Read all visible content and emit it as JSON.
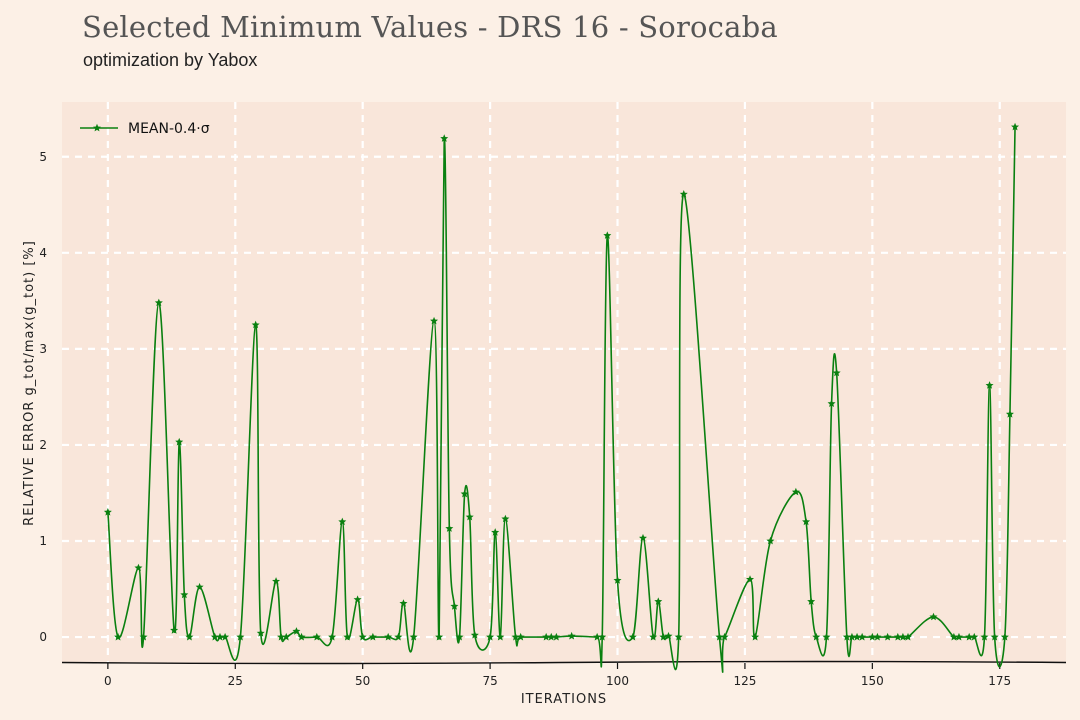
{
  "header": {
    "title": "Selected Minimum Values - DRS 16 - Sorocaba",
    "subtitle": "optimization by Yabox"
  },
  "colors": {
    "background": "#fcf0e6",
    "plot_area": "#f9e6da",
    "grid": "#ffffff",
    "series": "#0a8010"
  },
  "chart_data": {
    "type": "line",
    "title": "Selected Minimum Values - DRS 16 - Sorocaba",
    "subtitle": "optimization by Yabox",
    "xlabel": "ITERATIONS",
    "ylabel": "RELATIVE ERROR g_tot/max(g_tot) [%]",
    "xlim": [
      -9,
      188
    ],
    "ylim": [
      -0.27,
      5.57
    ],
    "xticks": [
      0,
      25,
      50,
      75,
      100,
      125,
      150,
      175
    ],
    "yticks": [
      0,
      1,
      2,
      3,
      4,
      5
    ],
    "grid": true,
    "legend_position": "top-left",
    "series": [
      {
        "name": "MEAN-0.4·σ",
        "marker": "star",
        "x": [
          0,
          2,
          6,
          7,
          10,
          13,
          14,
          15,
          16,
          18,
          21,
          22,
          23,
          26,
          29,
          30,
          33,
          34,
          35,
          37,
          38,
          41,
          44,
          46,
          47,
          49,
          50,
          52,
          55,
          57,
          58,
          60,
          64,
          65,
          66,
          67,
          68,
          69,
          70,
          71,
          72,
          75,
          76,
          77,
          78,
          80,
          81,
          86,
          87,
          88,
          91,
          96,
          97,
          98,
          100,
          103,
          105,
          107,
          108,
          109,
          110,
          112,
          113,
          120,
          121,
          126,
          127,
          130,
          135,
          137,
          138,
          139,
          141,
          142,
          143,
          145,
          146,
          147,
          148,
          150,
          151,
          153,
          155,
          156,
          157,
          162,
          166,
          167,
          169,
          170,
          172,
          173,
          174,
          176,
          177,
          178
        ],
        "y": [
          1.3,
          0,
          0.72,
          0,
          3.48,
          0.07,
          2.03,
          0.44,
          0,
          0.52,
          0,
          0,
          0,
          0,
          3.25,
          0.04,
          0.58,
          0,
          0,
          0.06,
          0,
          0,
          0,
          1.2,
          0,
          0.39,
          0,
          0,
          0,
          0,
          0.35,
          0,
          3.29,
          0,
          5.19,
          1.13,
          0.32,
          0,
          1.49,
          1.25,
          0.02,
          0,
          1.09,
          0,
          1.23,
          0,
          0,
          0,
          0,
          0,
          0.01,
          0,
          0,
          4.18,
          0.59,
          0,
          1.03,
          0,
          0.37,
          0,
          0.01,
          0,
          4.61,
          0,
          0,
          0.6,
          0,
          1.0,
          1.51,
          1.2,
          0.37,
          0,
          0,
          2.43,
          2.75,
          0,
          0,
          0,
          0,
          0,
          0,
          0,
          0,
          0,
          0,
          0.21,
          0,
          0,
          0,
          0,
          0,
          2.62,
          0,
          0,
          2.32,
          5.31
        ]
      }
    ]
  }
}
